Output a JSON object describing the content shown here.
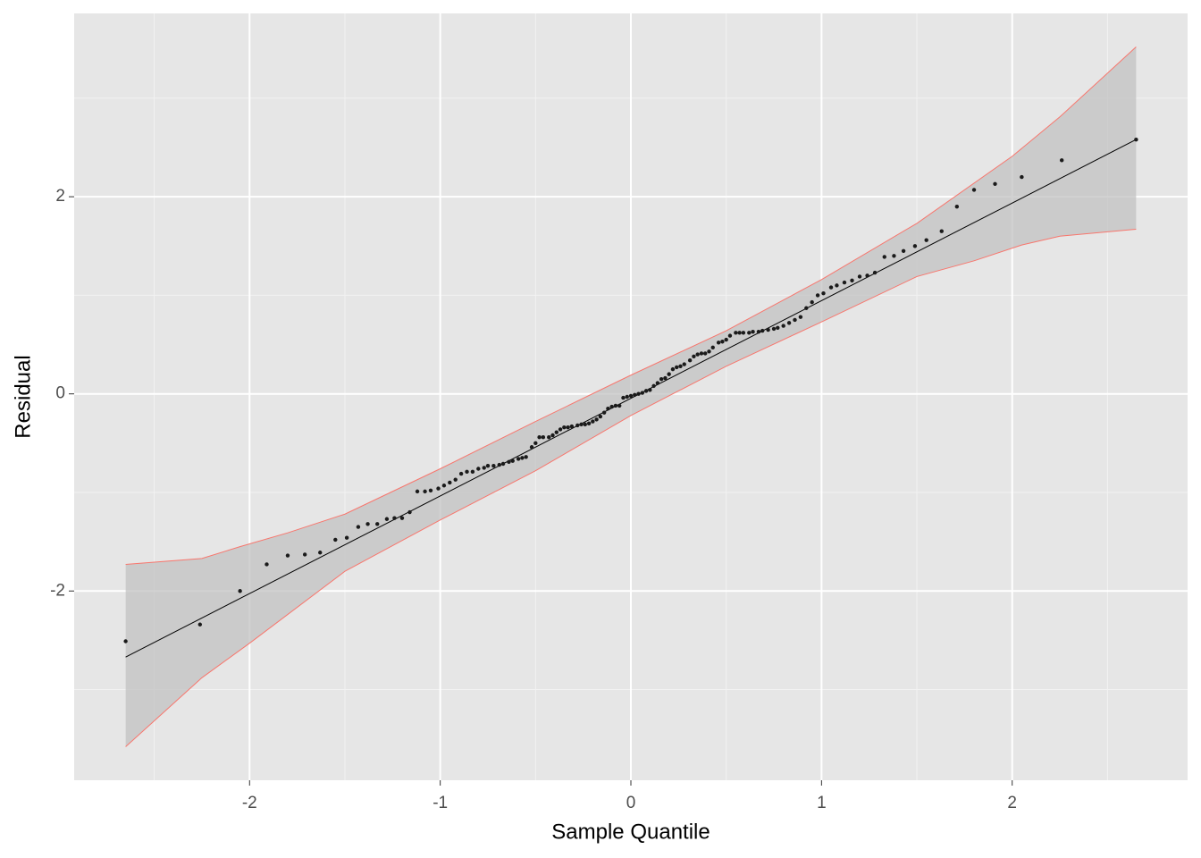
{
  "chart_data": {
    "type": "scatter",
    "xlabel": "Sample Quantile",
    "ylabel": "Residual",
    "xlim": [
      -2.92,
      2.92
    ],
    "ylim": [
      -3.92,
      3.86
    ],
    "xticks": [
      -2,
      -1,
      0,
      1,
      2
    ],
    "yticks": [
      -2,
      0,
      2
    ],
    "xminor": [
      -2.5,
      -1.5,
      -0.5,
      0.5,
      1.5,
      2.5
    ],
    "yminor": [
      -3,
      -1,
      1,
      3
    ],
    "grid": true,
    "color": "#1a1a1a",
    "x": [
      -2.65,
      -2.26,
      -2.05,
      -1.91,
      -1.8,
      -1.71,
      -1.63,
      -1.55,
      -1.49,
      -1.43,
      -1.38,
      -1.33,
      -1.28,
      -1.24,
      -1.2,
      -1.16,
      -1.12,
      -1.08,
      -1.05,
      -1.01,
      -0.98,
      -0.95,
      -0.92,
      -0.89,
      -0.86,
      -0.83,
      -0.8,
      -0.77,
      -0.75,
      -0.72,
      -0.69,
      -0.67,
      -0.64,
      -0.62,
      -0.59,
      -0.57,
      -0.55,
      -0.52,
      -0.5,
      -0.48,
      -0.46,
      -0.43,
      -0.41,
      -0.39,
      -0.37,
      -0.35,
      -0.33,
      -0.31,
      -0.28,
      -0.26,
      -0.24,
      -0.22,
      -0.2,
      -0.18,
      -0.16,
      -0.14,
      -0.12,
      -0.1,
      -0.08,
      -0.06,
      -0.04,
      -0.02,
      0,
      0.02,
      0.04,
      0.06,
      0.08,
      0.1,
      0.12,
      0.14,
      0.16,
      0.18,
      0.2,
      0.22,
      0.24,
      0.26,
      0.28,
      0.31,
      0.33,
      0.35,
      0.37,
      0.39,
      0.41,
      0.43,
      0.46,
      0.48,
      0.5,
      0.52,
      0.55,
      0.57,
      0.59,
      0.62,
      0.64,
      0.67,
      0.69,
      0.72,
      0.75,
      0.77,
      0.8,
      0.83,
      0.86,
      0.89,
      0.92,
      0.95,
      0.98,
      1.01,
      1.05,
      1.08,
      1.12,
      1.16,
      1.2,
      1.24,
      1.28,
      1.33,
      1.38,
      1.43,
      1.49,
      1.55,
      1.63,
      1.71,
      1.8,
      1.91,
      2.05,
      2.26,
      2.65
    ],
    "values": [
      -2.51,
      -2.34,
      -2.0,
      -1.73,
      -1.64,
      -1.63,
      -1.61,
      -1.48,
      -1.46,
      -1.35,
      -1.32,
      -1.32,
      -1.27,
      -1.26,
      -1.26,
      -1.2,
      -0.99,
      -0.99,
      -0.98,
      -0.96,
      -0.93,
      -0.9,
      -0.87,
      -0.81,
      -0.79,
      -0.79,
      -0.76,
      -0.75,
      -0.73,
      -0.73,
      -0.72,
      -0.71,
      -0.69,
      -0.68,
      -0.66,
      -0.65,
      -0.64,
      -0.54,
      -0.5,
      -0.44,
      -0.44,
      -0.44,
      -0.42,
      -0.39,
      -0.36,
      -0.34,
      -0.34,
      -0.33,
      -0.32,
      -0.31,
      -0.31,
      -0.3,
      -0.28,
      -0.26,
      -0.23,
      -0.19,
      -0.15,
      -0.13,
      -0.12,
      -0.12,
      -0.04,
      -0.03,
      -0.02,
      -0.01,
      0.0,
      0.01,
      0.03,
      0.04,
      0.08,
      0.11,
      0.15,
      0.16,
      0.2,
      0.25,
      0.27,
      0.28,
      0.3,
      0.34,
      0.38,
      0.4,
      0.41,
      0.41,
      0.43,
      0.47,
      0.52,
      0.53,
      0.55,
      0.59,
      0.62,
      0.62,
      0.62,
      0.62,
      0.63,
      0.63,
      0.64,
      0.65,
      0.66,
      0.67,
      0.69,
      0.72,
      0.75,
      0.78,
      0.87,
      0.93,
      1.0,
      1.02,
      1.08,
      1.1,
      1.13,
      1.15,
      1.19,
      1.2,
      1.23,
      1.39,
      1.4,
      1.45,
      1.5,
      1.56,
      1.65,
      1.9,
      2.07,
      2.13,
      2.2,
      2.37,
      2.58
    ],
    "reference_line": {
      "x": [
        -2.65,
        2.65
      ],
      "y": [
        -2.67,
        2.58
      ]
    },
    "band": {
      "upper": {
        "x": [
          -2.65,
          -2.25,
          -2.05,
          -1.8,
          -1.5,
          -1,
          -0.5,
          0,
          0.5,
          1,
          1.5,
          2,
          2.25,
          2.65
        ],
        "y": [
          -1.73,
          -1.67,
          -1.55,
          -1.41,
          -1.22,
          -0.76,
          -0.28,
          0.19,
          0.64,
          1.16,
          1.73,
          2.41,
          2.81,
          3.52
        ]
      },
      "lower": {
        "x": [
          -2.65,
          -2.25,
          -2,
          -1.5,
          -1,
          -0.5,
          0,
          0.5,
          1,
          1.5,
          1.8,
          2.05,
          2.25,
          2.65
        ],
        "y": [
          -3.58,
          -2.88,
          -2.53,
          -1.8,
          -1.28,
          -0.78,
          -0.22,
          0.28,
          0.73,
          1.19,
          1.35,
          1.51,
          1.6,
          1.67
        ]
      }
    }
  }
}
